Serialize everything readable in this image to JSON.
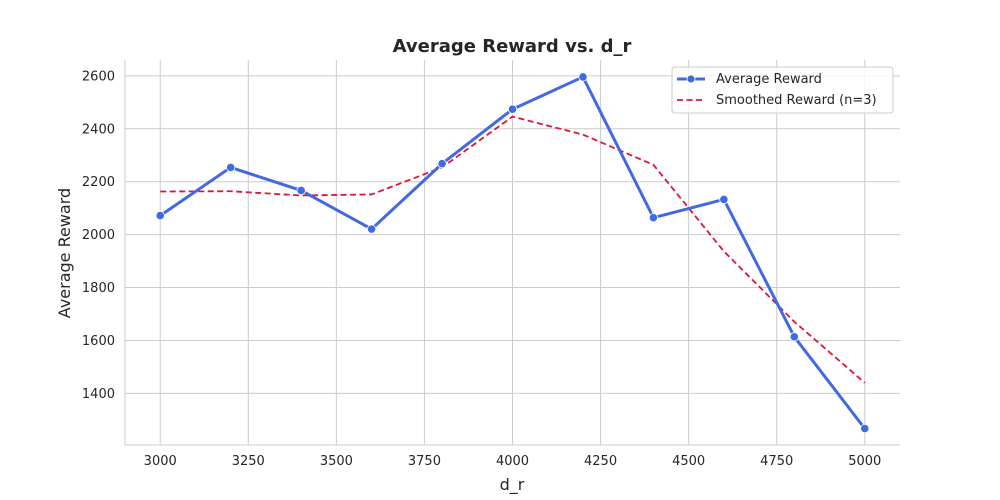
{
  "chart_data": {
    "type": "line",
    "title": "Average Reward vs. d_r",
    "xlabel": "d_r",
    "ylabel": "Average Reward",
    "xlim": [
      2900,
      5100
    ],
    "ylim": [
      1205,
      2660
    ],
    "x_ticks": [
      3000,
      3250,
      3500,
      3750,
      4000,
      4250,
      4500,
      4750,
      5000
    ],
    "y_ticks": [
      1400,
      1600,
      1800,
      2000,
      2200,
      2400,
      2600
    ],
    "grid": true,
    "legend_position": "top-right",
    "x": [
      3000,
      3200,
      3400,
      3600,
      3800,
      4000,
      4200,
      4400,
      4600,
      4800,
      5000
    ],
    "series": [
      {
        "name": "Average Reward",
        "style": "solid-with-markers",
        "color": "#4169E1",
        "values": [
          2072,
          2254,
          2167,
          2021,
          2268,
          2474,
          2596,
          2064,
          2133,
          1614,
          1267
        ]
      },
      {
        "name": "Smoothed Reward (n=3)",
        "style": "dashed",
        "color": "#DC143C",
        "values": [
          2163,
          2164,
          2148,
          2152,
          2254,
          2446,
          2378,
          2264,
          1937,
          1671,
          1440
        ]
      }
    ]
  }
}
